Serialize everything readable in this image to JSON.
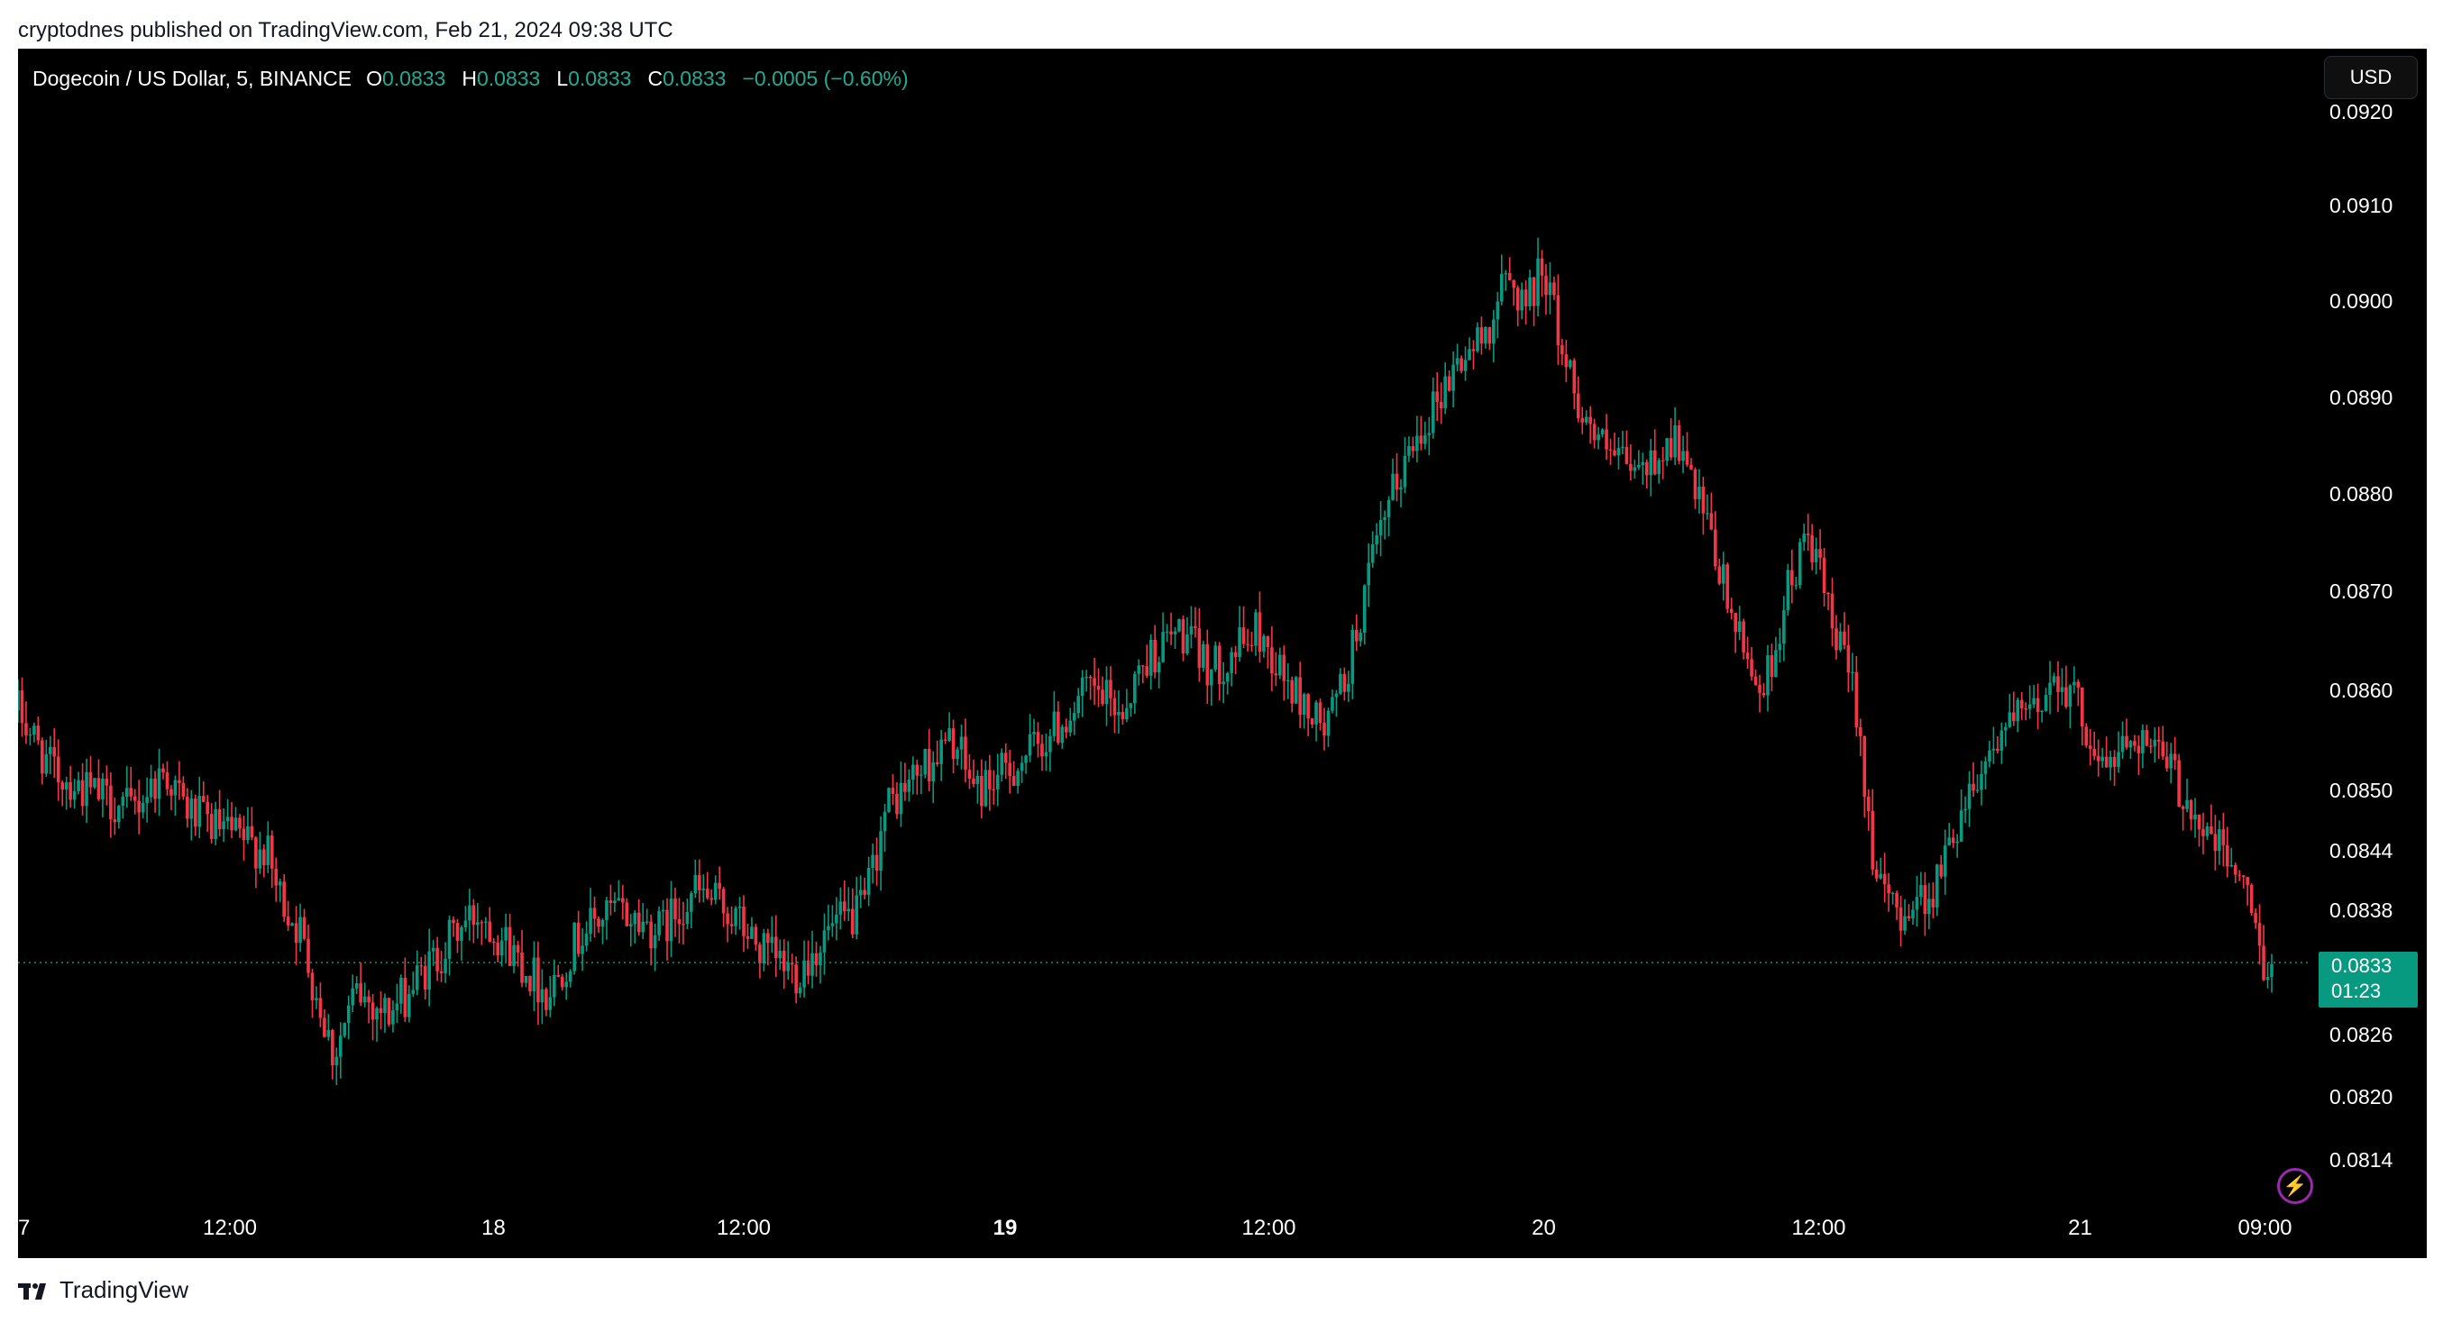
{
  "publisher_line": "cryptodnes published on TradingView.com, Feb 21, 2024 09:38 UTC",
  "legend": {
    "symbol": "Dogecoin / US Dollar, 5, BINANCE",
    "open_label": "O",
    "open": "0.0833",
    "high_label": "H",
    "high": "0.0833",
    "low_label": "L",
    "low": "0.0833",
    "close_label": "C",
    "close": "0.0833",
    "change": "−0.0005 (−0.60%)"
  },
  "currency_button": "USD",
  "price_tag": {
    "price": "0.0833",
    "countdown": "01:23"
  },
  "footer_brand": "TradingView",
  "colors": {
    "up": "#089981",
    "down": "#f23645",
    "background": "#000000",
    "axis_text": "#ffffff"
  },
  "icons": [
    "lightning-icon",
    "tradingview-logo-icon"
  ],
  "chart_data": {
    "type": "candlestick",
    "symbol": "DOGEUSD",
    "interval": "5",
    "current_price": 0.0833,
    "y_ticks": [
      "0.0814",
      "0.0820",
      "0.0826",
      "0.0838",
      "0.0844",
      "0.0850",
      "0.0860",
      "0.0870",
      "0.0880",
      "0.0890",
      "0.0900",
      "0.0910",
      "0.0920"
    ],
    "x_ticks": [
      {
        "label": "7",
        "t": 0
      },
      {
        "label": "12:00",
        "t": 0.094
      },
      {
        "label": "18",
        "t": 0.211
      },
      {
        "label": "12:00",
        "t": 0.322
      },
      {
        "label": "19",
        "t": 0.438
      },
      {
        "label": "12:00",
        "t": 0.555
      },
      {
        "label": "20",
        "t": 0.677
      },
      {
        "label": "12:00",
        "t": 0.799
      },
      {
        "label": "21",
        "t": 0.915
      },
      {
        "label": "09:00",
        "t": 0.997
      }
    ],
    "price_path": [
      [
        0.0,
        0.0858
      ],
      [
        0.015,
        0.0852
      ],
      [
        0.03,
        0.085
      ],
      [
        0.05,
        0.0848
      ],
      [
        0.065,
        0.0852
      ],
      [
        0.075,
        0.0848
      ],
      [
        0.09,
        0.0846
      ],
      [
        0.11,
        0.0844
      ],
      [
        0.115,
        0.084
      ],
      [
        0.125,
        0.0836
      ],
      [
        0.135,
        0.0828
      ],
      [
        0.14,
        0.0824
      ],
      [
        0.15,
        0.083
      ],
      [
        0.165,
        0.0828
      ],
      [
        0.18,
        0.0832
      ],
      [
        0.195,
        0.0836
      ],
      [
        0.205,
        0.0838
      ],
      [
        0.22,
        0.0834
      ],
      [
        0.235,
        0.083
      ],
      [
        0.25,
        0.0836
      ],
      [
        0.265,
        0.0838
      ],
      [
        0.285,
        0.0836
      ],
      [
        0.3,
        0.084
      ],
      [
        0.315,
        0.0838
      ],
      [
        0.33,
        0.0834
      ],
      [
        0.345,
        0.0832
      ],
      [
        0.36,
        0.0836
      ],
      [
        0.375,
        0.0838
      ],
      [
        0.385,
        0.0848
      ],
      [
        0.4,
        0.0852
      ],
      [
        0.415,
        0.0855
      ],
      [
        0.425,
        0.085
      ],
      [
        0.44,
        0.0852
      ],
      [
        0.46,
        0.0856
      ],
      [
        0.475,
        0.086
      ],
      [
        0.49,
        0.0858
      ],
      [
        0.5,
        0.0863
      ],
      [
        0.515,
        0.0866
      ],
      [
        0.53,
        0.0862
      ],
      [
        0.55,
        0.0866
      ],
      [
        0.565,
        0.086
      ],
      [
        0.58,
        0.0856
      ],
      [
        0.59,
        0.0862
      ],
      [
        0.6,
        0.0872
      ],
      [
        0.61,
        0.088
      ],
      [
        0.62,
        0.0886
      ],
      [
        0.63,
        0.089
      ],
      [
        0.64,
        0.0894
      ],
      [
        0.65,
        0.0896
      ],
      [
        0.66,
        0.0902
      ],
      [
        0.67,
        0.09
      ],
      [
        0.677,
        0.0904
      ],
      [
        0.685,
        0.0895
      ],
      [
        0.695,
        0.0888
      ],
      [
        0.705,
        0.0884
      ],
      [
        0.72,
        0.0882
      ],
      [
        0.735,
        0.0886
      ],
      [
        0.75,
        0.0876
      ],
      [
        0.765,
        0.0864
      ],
      [
        0.775,
        0.086
      ],
      [
        0.785,
        0.087
      ],
      [
        0.795,
        0.0876
      ],
      [
        0.805,
        0.0866
      ],
      [
        0.815,
        0.086
      ],
      [
        0.82,
        0.085
      ],
      [
        0.825,
        0.084
      ],
      [
        0.835,
        0.0838
      ],
      [
        0.85,
        0.084
      ],
      [
        0.865,
        0.085
      ],
      [
        0.88,
        0.0856
      ],
      [
        0.895,
        0.0858
      ],
      [
        0.905,
        0.0862
      ],
      [
        0.915,
        0.0858
      ],
      [
        0.925,
        0.0852
      ],
      [
        0.94,
        0.0856
      ],
      [
        0.955,
        0.0852
      ],
      [
        0.97,
        0.0846
      ],
      [
        0.985,
        0.0842
      ],
      [
        0.997,
        0.0833
      ]
    ]
  }
}
